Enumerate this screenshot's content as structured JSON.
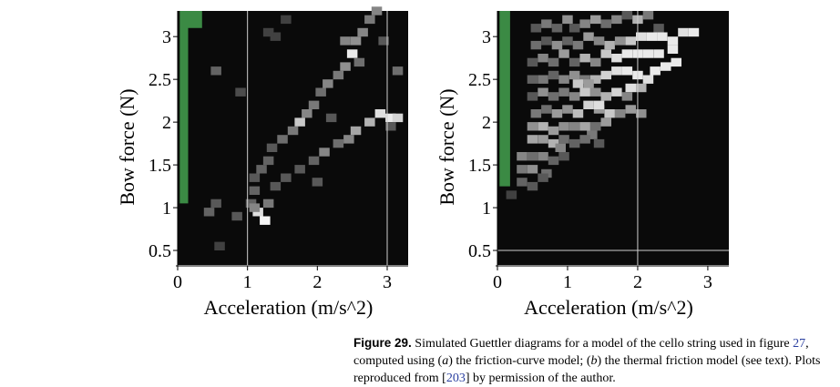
{
  "caption": {
    "label": "Figure 29.",
    "t1": " Simulated Guettler diagrams for a model of the cello string used in figure ",
    "ref1": "27",
    "t2": ", computed using (",
    "a": "a",
    "t3": ") the friction-curve model; (",
    "b": "b",
    "t4": ") the thermal friction model (see text). Plots reproduced from [",
    "ref2": "203",
    "t5": "] by permission of the author."
  },
  "chart_data": [
    {
      "type": "heatmap",
      "xlabel": "Acceleration (m/s^2)",
      "ylabel": "Bow force (N)",
      "xlim": [
        0,
        3.3
      ],
      "ylim": [
        0.33,
        3.3
      ],
      "xticks": [
        0,
        1,
        2,
        3
      ],
      "yticks": [
        0.5,
        1,
        1.5,
        2,
        2.5,
        3
      ],
      "xtick_labels": [
        "0",
        "1",
        "2",
        "3"
      ],
      "ytick_labels": [
        "0.5",
        "1",
        "1.5",
        "2",
        "2.5",
        "3"
      ],
      "green_region": "low acceleration, bow force 1.05–3.3",
      "vlines": [
        1,
        3
      ],
      "hlines": [],
      "cells": [
        [
          0.55,
          2.6,
          0.35
        ],
        [
          0.9,
          2.35,
          0.25
        ],
        [
          0.55,
          1.05,
          0.3
        ],
        [
          0.45,
          0.95,
          0.35
        ],
        [
          0.6,
          0.55,
          0.2
        ],
        [
          0.85,
          0.9,
          0.3
        ],
        [
          1.05,
          1.05,
          0.35
        ],
        [
          1.4,
          3.0,
          0.2
        ],
        [
          1.55,
          3.2,
          0.2
        ],
        [
          1.15,
          0.95,
          0.9
        ],
        [
          1.25,
          0.85,
          1.0
        ],
        [
          1.1,
          1.0,
          0.5
        ],
        [
          1.3,
          1.05,
          0.45
        ],
        [
          1.1,
          1.2,
          0.35
        ],
        [
          1.1,
          1.35,
          0.3
        ],
        [
          1.2,
          1.45,
          0.35
        ],
        [
          1.3,
          1.55,
          0.35
        ],
        [
          1.35,
          1.7,
          0.3
        ],
        [
          1.5,
          1.8,
          0.4
        ],
        [
          1.65,
          1.9,
          0.45
        ],
        [
          1.75,
          2.0,
          0.8
        ],
        [
          1.85,
          2.1,
          0.5
        ],
        [
          1.95,
          2.2,
          0.45
        ],
        [
          2.05,
          2.35,
          0.4
        ],
        [
          2.15,
          2.45,
          0.5
        ],
        [
          2.3,
          2.55,
          0.45
        ],
        [
          2.4,
          2.65,
          0.55
        ],
        [
          2.5,
          2.8,
          0.95
        ],
        [
          2.4,
          2.95,
          0.5
        ],
        [
          2.55,
          2.95,
          0.55
        ],
        [
          2.65,
          3.05,
          0.5
        ],
        [
          2.75,
          3.2,
          0.45
        ],
        [
          2.85,
          3.3,
          0.5
        ],
        [
          2.6,
          2.7,
          0.4
        ],
        [
          1.4,
          1.25,
          0.3
        ],
        [
          1.55,
          1.35,
          0.3
        ],
        [
          1.75,
          1.45,
          0.3
        ],
        [
          1.95,
          1.55,
          0.35
        ],
        [
          2.1,
          1.65,
          0.5
        ],
        [
          2.3,
          1.75,
          0.4
        ],
        [
          2.45,
          1.8,
          0.5
        ],
        [
          2.55,
          1.9,
          0.65
        ],
        [
          2.75,
          2.0,
          0.7
        ],
        [
          2.9,
          2.1,
          0.9
        ],
        [
          3.05,
          2.05,
          0.95
        ],
        [
          3.15,
          2.05,
          0.85
        ],
        [
          3.05,
          1.95,
          0.3
        ],
        [
          3.15,
          2.6,
          0.4
        ],
        [
          2.95,
          2.95,
          0.3
        ],
        [
          1.3,
          3.05,
          0.2
        ],
        [
          2.2,
          2.05,
          0.3
        ],
        [
          2.0,
          1.3,
          0.3
        ]
      ]
    },
    {
      "type": "heatmap",
      "xlabel": "Acceleration (m/s^2)",
      "ylabel": "Bow force (N)",
      "xlim": [
        0,
        3.3
      ],
      "ylim": [
        0.33,
        3.3
      ],
      "xticks": [
        0,
        1,
        2,
        3
      ],
      "yticks": [
        0.5,
        1,
        1.5,
        2,
        2.5,
        3
      ],
      "xtick_labels": [
        "0",
        "1",
        "2",
        "3"
      ],
      "ytick_labels": [
        "0.5",
        "1",
        "1.5",
        "2",
        "2.5",
        "3"
      ],
      "green_region": "low acceleration, bow force 1.25–3.3",
      "vlines": [
        2
      ],
      "hlines": [
        0.5
      ],
      "cells": [
        [
          0.55,
          3.1,
          0.3
        ],
        [
          0.7,
          3.15,
          0.45
        ],
        [
          0.85,
          3.1,
          0.35
        ],
        [
          1.0,
          3.2,
          0.55
        ],
        [
          1.1,
          3.1,
          0.3
        ],
        [
          1.25,
          3.15,
          0.5
        ],
        [
          1.4,
          3.2,
          0.6
        ],
        [
          1.55,
          3.15,
          0.4
        ],
        [
          1.7,
          3.2,
          0.5
        ],
        [
          1.85,
          3.25,
          0.3
        ],
        [
          2.0,
          3.2,
          0.7
        ],
        [
          2.15,
          3.25,
          0.45
        ],
        [
          2.3,
          3.1,
          0.3
        ],
        [
          0.55,
          2.9,
          0.4
        ],
        [
          0.7,
          2.95,
          0.3
        ],
        [
          0.85,
          2.9,
          0.55
        ],
        [
          1.0,
          2.95,
          0.35
        ],
        [
          1.15,
          2.9,
          0.45
        ],
        [
          1.3,
          3.0,
          0.6
        ],
        [
          1.45,
          2.95,
          0.5
        ],
        [
          1.6,
          2.9,
          0.7
        ],
        [
          1.75,
          2.95,
          0.55
        ],
        [
          1.9,
          2.95,
          0.8
        ],
        [
          2.05,
          3.0,
          0.9
        ],
        [
          2.2,
          3.0,
          0.95
        ],
        [
          2.35,
          3.0,
          0.95
        ],
        [
          2.5,
          2.95,
          0.95
        ],
        [
          2.65,
          3.05,
          0.9
        ],
        [
          2.8,
          3.05,
          0.95
        ],
        [
          2.5,
          2.85,
          0.95
        ],
        [
          0.5,
          2.7,
          0.3
        ],
        [
          0.65,
          2.75,
          0.5
        ],
        [
          0.8,
          2.7,
          0.4
        ],
        [
          0.95,
          2.8,
          0.6
        ],
        [
          1.1,
          2.7,
          0.35
        ],
        [
          1.25,
          2.75,
          0.7
        ],
        [
          1.4,
          2.7,
          0.5
        ],
        [
          1.55,
          2.8,
          0.8
        ],
        [
          1.7,
          2.75,
          0.9
        ],
        [
          1.85,
          2.8,
          0.95
        ],
        [
          2.0,
          2.8,
          0.95
        ],
        [
          2.15,
          2.8,
          0.95
        ],
        [
          2.3,
          2.8,
          0.95
        ],
        [
          2.4,
          2.65,
          0.95
        ],
        [
          2.55,
          2.7,
          0.95
        ],
        [
          2.25,
          2.6,
          0.95
        ],
        [
          0.5,
          2.5,
          0.35
        ],
        [
          0.65,
          2.5,
          0.45
        ],
        [
          0.8,
          2.55,
          0.35
        ],
        [
          0.95,
          2.5,
          0.5
        ],
        [
          1.1,
          2.55,
          0.55
        ],
        [
          1.25,
          2.5,
          0.45
        ],
        [
          1.4,
          2.5,
          0.7
        ],
        [
          1.55,
          2.55,
          0.85
        ],
        [
          1.7,
          2.6,
          0.9
        ],
        [
          1.85,
          2.6,
          0.95
        ],
        [
          2.0,
          2.55,
          0.95
        ],
        [
          2.15,
          2.5,
          0.9
        ],
        [
          1.9,
          2.4,
          0.9
        ],
        [
          2.05,
          2.4,
          0.7
        ],
        [
          0.5,
          2.3,
          0.3
        ],
        [
          0.65,
          2.35,
          0.55
        ],
        [
          0.8,
          2.3,
          0.4
        ],
        [
          0.95,
          2.35,
          0.45
        ],
        [
          1.1,
          2.3,
          0.5
        ],
        [
          1.25,
          2.35,
          0.8
        ],
        [
          1.4,
          2.35,
          0.55
        ],
        [
          1.55,
          2.3,
          0.7
        ],
        [
          1.7,
          2.35,
          0.85
        ],
        [
          1.85,
          2.3,
          0.5
        ],
        [
          1.15,
          2.45,
          0.8
        ],
        [
          1.3,
          2.45,
          0.6
        ],
        [
          0.55,
          2.1,
          0.45
        ],
        [
          0.7,
          2.15,
          0.4
        ],
        [
          0.85,
          2.1,
          0.6
        ],
        [
          1.0,
          2.15,
          0.55
        ],
        [
          1.15,
          2.1,
          0.75
        ],
        [
          1.3,
          2.2,
          0.85
        ],
        [
          1.45,
          2.15,
          0.6
        ],
        [
          1.6,
          2.1,
          0.8
        ],
        [
          1.75,
          2.1,
          0.5
        ],
        [
          1.9,
          2.15,
          0.6
        ],
        [
          2.05,
          2.1,
          0.55
        ],
        [
          1.45,
          2.2,
          0.9
        ],
        [
          0.5,
          1.95,
          0.55
        ],
        [
          0.65,
          1.95,
          0.7
        ],
        [
          0.8,
          1.9,
          0.6
        ],
        [
          0.95,
          1.95,
          0.55
        ],
        [
          1.1,
          1.95,
          0.5
        ],
        [
          1.25,
          1.95,
          0.65
        ],
        [
          1.4,
          1.95,
          0.4
        ],
        [
          1.55,
          2.0,
          0.6
        ],
        [
          1.35,
          1.85,
          0.45
        ],
        [
          0.5,
          1.8,
          0.65
        ],
        [
          0.65,
          1.8,
          0.6
        ],
        [
          0.8,
          1.75,
          0.7
        ],
        [
          0.95,
          1.8,
          0.4
        ],
        [
          1.1,
          1.75,
          0.35
        ],
        [
          1.25,
          1.8,
          0.4
        ],
        [
          1.45,
          1.75,
          0.3
        ],
        [
          0.9,
          1.7,
          0.5
        ],
        [
          0.35,
          1.6,
          0.5
        ],
        [
          0.5,
          1.6,
          0.4
        ],
        [
          0.65,
          1.6,
          0.5
        ],
        [
          0.8,
          1.55,
          0.35
        ],
        [
          0.95,
          1.6,
          0.3
        ],
        [
          0.35,
          1.45,
          0.45
        ],
        [
          0.5,
          1.45,
          0.55
        ],
        [
          0.7,
          1.4,
          0.4
        ],
        [
          0.35,
          1.3,
          0.35
        ],
        [
          0.5,
          1.25,
          0.3
        ],
        [
          0.65,
          1.35,
          0.3
        ],
        [
          0.2,
          1.15,
          0.2
        ]
      ]
    }
  ]
}
